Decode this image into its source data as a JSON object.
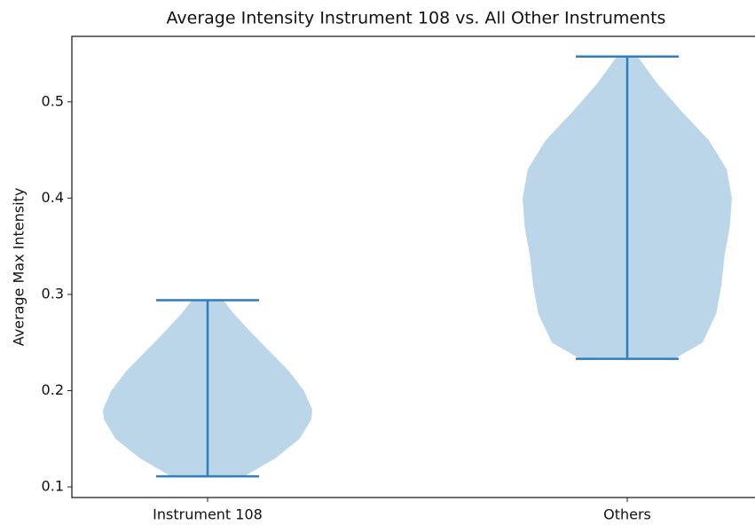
{
  "chart_data": {
    "type": "violin",
    "title": "Average Intensity Instrument 108 vs. All Other Instruments",
    "y_label": "Average Max Intensity",
    "categories": [
      "Instrument 108",
      "Others"
    ],
    "series": [
      {
        "min": 0.111,
        "max": 0.294,
        "kde_y": [
          0.111,
          0.13,
          0.15,
          0.17,
          0.18,
          0.2,
          0.22,
          0.24,
          0.26,
          0.28,
          0.294
        ],
        "kde_width": [
          0.35,
          0.65,
          0.88,
          0.99,
          1.0,
          0.92,
          0.78,
          0.6,
          0.42,
          0.25,
          0.15
        ]
      },
      {
        "min": 0.233,
        "max": 0.547,
        "kde_y": [
          0.233,
          0.25,
          0.28,
          0.31,
          0.34,
          0.37,
          0.4,
          0.43,
          0.46,
          0.49,
          0.52,
          0.547
        ],
        "kde_width": [
          0.45,
          0.72,
          0.85,
          0.9,
          0.93,
          0.98,
          1.0,
          0.95,
          0.78,
          0.52,
          0.28,
          0.1
        ]
      }
    ],
    "fill_color": "#bcd6e9",
    "line_color": "#2f7dba",
    "ylim": [
      0.089,
      0.568
    ],
    "yticks": [
      0.1,
      0.2,
      0.3,
      0.4,
      0.5
    ]
  }
}
